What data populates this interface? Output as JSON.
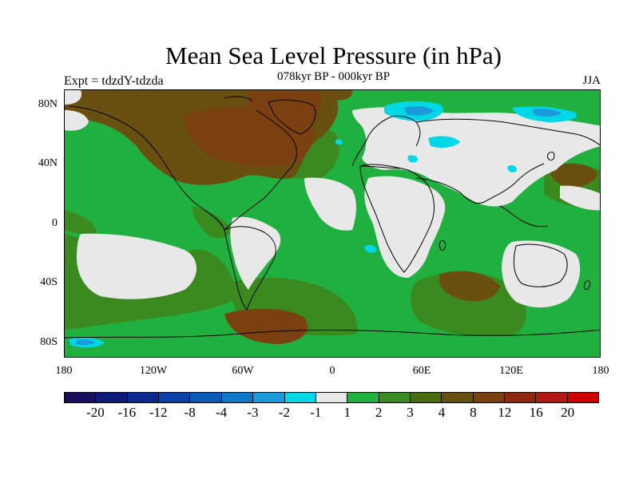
{
  "title": "Mean Sea Level Pressure (in hPa)",
  "subtitle": "078kyr BP - 000kyr BP",
  "left_label": "Expt = tdzdY-tdzda",
  "right_label": "JJA",
  "lat_labels": [
    "80N",
    "40N",
    "0",
    "40S",
    "80S"
  ],
  "lon_labels": [
    "180",
    "120W",
    "60W",
    "0",
    "60E",
    "120E",
    "180"
  ],
  "colorbar": {
    "colors": [
      "#1a0f5c",
      "#0c1a78",
      "#0a2a90",
      "#0a40a8",
      "#0a5ab8",
      "#1078c8",
      "#1a9ad8",
      "#00d8e8",
      "#e8e8e8",
      "#20b040",
      "#3a8a20",
      "#4a6a10",
      "#6a5010",
      "#7a4010",
      "#902810",
      "#b01810",
      "#d00000"
    ],
    "labels": [
      "-20",
      "-16",
      "-12",
      "-8",
      "-4",
      "-3",
      "-2",
      "-1",
      "1",
      "2",
      "3",
      "4",
      "8",
      "12",
      "16",
      "20"
    ]
  },
  "fill_colors": {
    "ocean_base": "#20b040",
    "light": "#e8e8e8",
    "olive": "#3a8a20",
    "brown": "#6a5010",
    "darkbrown": "#7a4010",
    "cyan": "#00d8e8",
    "blue": "#1a9ad8"
  }
}
